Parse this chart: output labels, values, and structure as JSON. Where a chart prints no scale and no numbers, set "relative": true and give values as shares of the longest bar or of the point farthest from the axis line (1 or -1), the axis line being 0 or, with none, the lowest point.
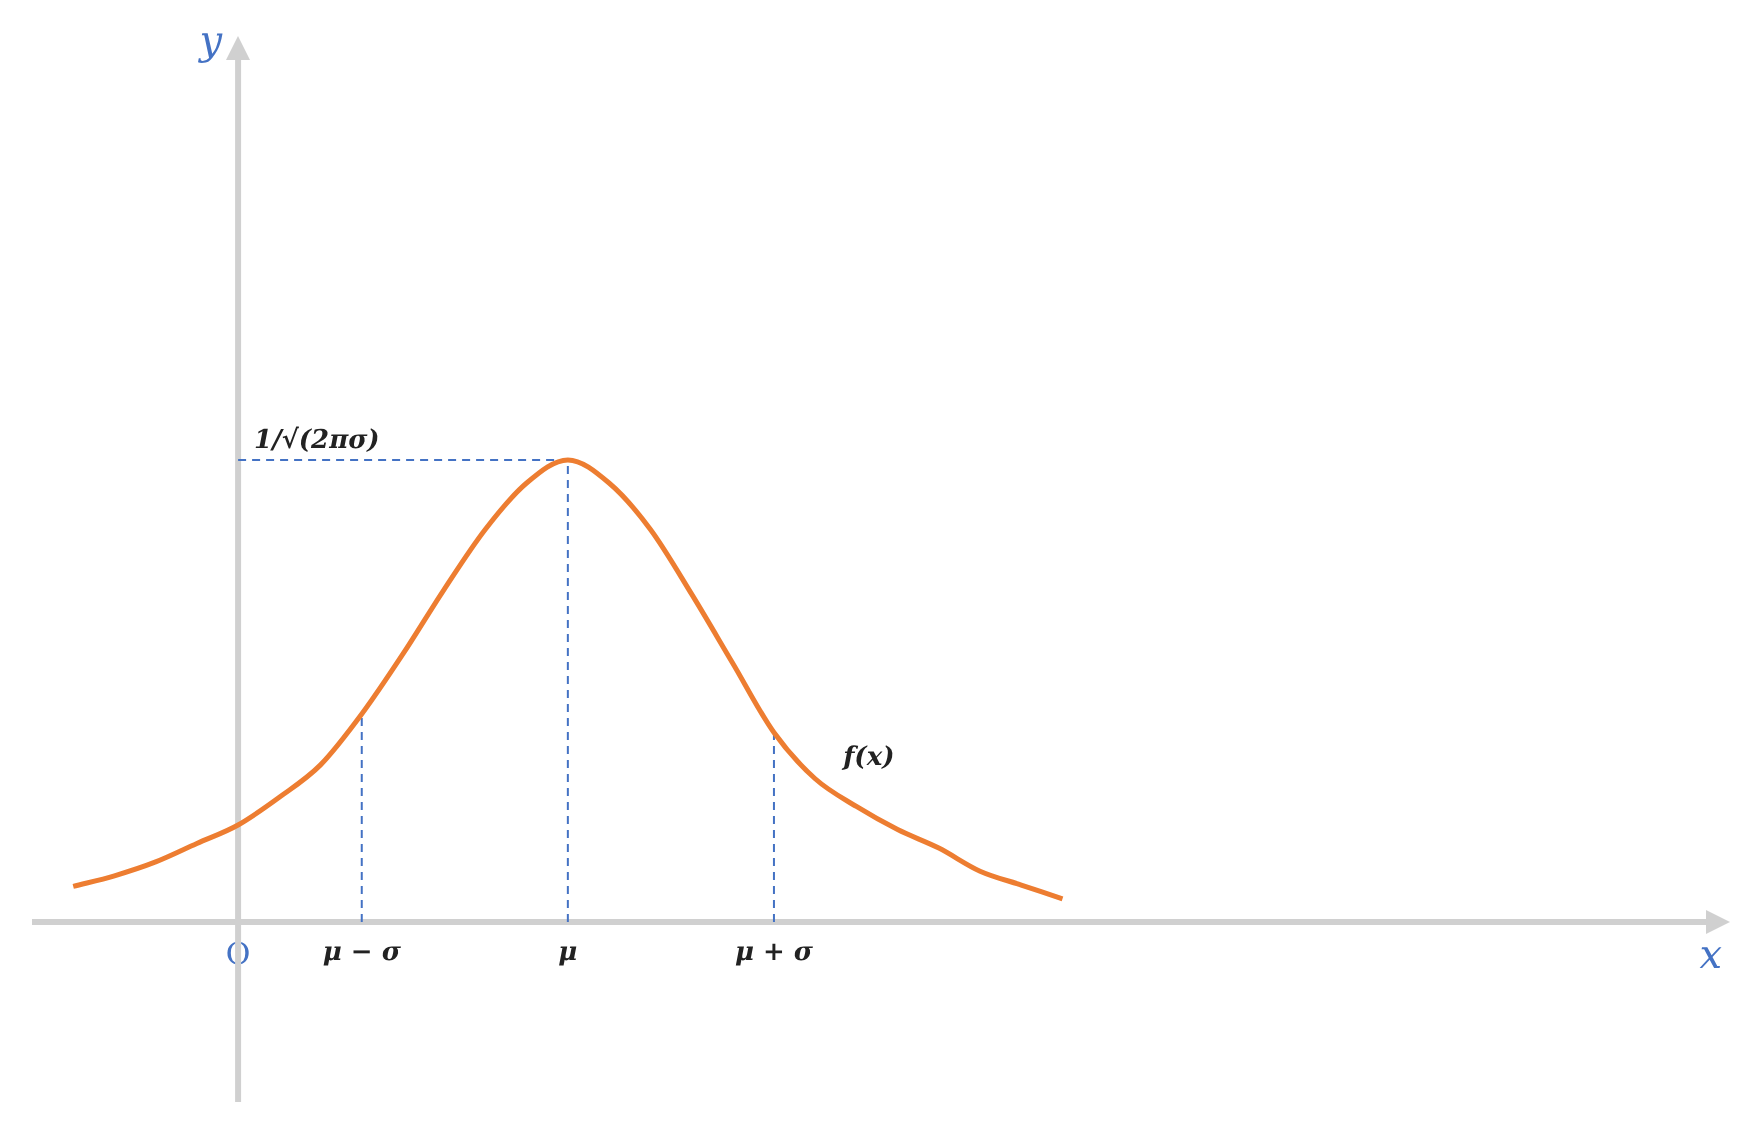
{
  "chart_data": {
    "type": "line",
    "relative": true,
    "xlabel": "x",
    "categories": [
      null,
      null,
      null,
      null,
      null,
      "O",
      null,
      null,
      "μ − σ",
      null,
      null,
      null,
      null,
      "μ",
      null,
      null,
      null,
      null,
      "μ + σ",
      null,
      null,
      null,
      null,
      null,
      null,
      null,
      null,
      null,
      null,
      null,
      null,
      null,
      null,
      null,
      null,
      null,
      null,
      null,
      null,
      null,
      null,
      null
    ],
    "series": [
      {
        "color": "#ed7d31",
        "values": [
          null,
          0.077,
          0.1,
          0.13,
          0.17,
          0.21,
          0.27,
          0.34,
          0.45,
          0.58,
          0.72,
          0.85,
          0.95,
          1,
          0.95,
          0.85,
          0.71,
          0.56,
          0.41,
          0.31,
          0.25,
          0.2,
          0.16,
          0.11,
          0.08,
          0.05,
          null,
          null,
          null,
          null,
          null,
          null,
          null,
          null,
          null,
          null,
          null,
          null,
          null,
          null,
          null,
          null
        ]
      }
    ],
    "ref_lines": [
      {
        "axis": "x",
        "value": "μ − σ",
        "color": "#4472c4",
        "line_style": "dashed"
      },
      {
        "axis": "x",
        "value": "μ",
        "color": "#4472c4",
        "line_style": "dashed"
      },
      {
        "axis": "x",
        "value": "μ + σ",
        "color": "#4472c4",
        "line_style": "dashed"
      },
      {
        "axis": "y",
        "value": 1,
        "label": "1/√(2πσ)",
        "color": "#4472c4",
        "line_style": "dashed"
      }
    ],
    "annotations": [
      "y",
      "f(x)"
    ],
    "legend": false
  }
}
